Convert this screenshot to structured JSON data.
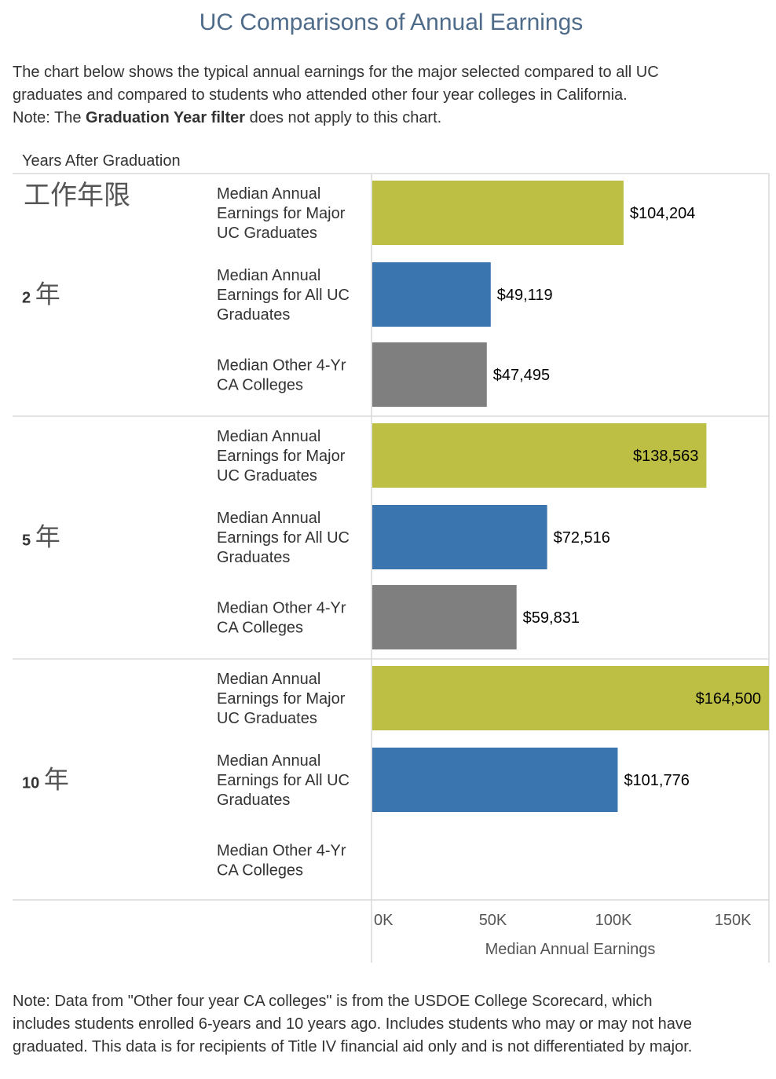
{
  "title": "UC Comparisons of Annual Earnings",
  "intro": {
    "line1": "The chart below shows the typical annual earnings for the major selected compared to all UC",
    "line2": "graduates and compared to students who attended other four year colleges in California.",
    "line3_prefix": "Note: The ",
    "line3_bold": "Graduation Year filter",
    "line3_suffix": " does not apply to this chart."
  },
  "footnote": {
    "line1": "Note: Data from \"Other four year CA colleges\" is from the USDOE College Scorecard, which",
    "line2": "includes students enrolled 6-years and 10 years ago. Includes students who may or may not have",
    "line3": "graduated. This data is for recipients of Title IV financial aid only and is not differentiated by major."
  },
  "chart_data": {
    "type": "bar",
    "orientation": "horizontal",
    "row_header": "Years After Graduation",
    "row_header_sub": "工作年限",
    "xlabel": "Median Annual Earnings",
    "xlim": [
      0,
      164500
    ],
    "xticks": [
      {
        "value": 0,
        "label": "0K"
      },
      {
        "value": 50000,
        "label": "50K"
      },
      {
        "value": 100000,
        "label": "100K"
      },
      {
        "value": 150000,
        "label": "150K"
      }
    ],
    "colors": {
      "major": "#bdbf44",
      "all_uc": "#3a75b0",
      "other": "#7f7f7f",
      "grid": "#d9d9d9"
    },
    "groups": [
      {
        "label": "2 年",
        "bars": [
          {
            "category": [
              "Median Annual",
              "Earnings for Major",
              "UC Graduates"
            ],
            "series": "major",
            "value": 104204,
            "value_label": "$104,204"
          },
          {
            "category": [
              "Median Annual",
              "Earnings for All UC",
              "Graduates"
            ],
            "series": "all_uc",
            "value": 49119,
            "value_label": "$49,119"
          },
          {
            "category": [
              "Median Other 4-Yr",
              "CA Colleges"
            ],
            "series": "other",
            "value": 47495,
            "value_label": "$47,495"
          }
        ]
      },
      {
        "label": "5 年",
        "bars": [
          {
            "category": [
              "Median Annual",
              "Earnings for Major",
              "UC Graduates"
            ],
            "series": "major",
            "value": 138563,
            "value_label": "$138,563"
          },
          {
            "category": [
              "Median Annual",
              "Earnings for All UC",
              "Graduates"
            ],
            "series": "all_uc",
            "value": 72516,
            "value_label": "$72,516"
          },
          {
            "category": [
              "Median Other 4-Yr",
              "CA Colleges"
            ],
            "series": "other",
            "value": 59831,
            "value_label": "$59,831"
          }
        ]
      },
      {
        "label": "10 年",
        "bars": [
          {
            "category": [
              "Median Annual",
              "Earnings for Major",
              "UC Graduates"
            ],
            "series": "major",
            "value": 164500,
            "value_label": "$164,500"
          },
          {
            "category": [
              "Median Annual",
              "Earnings for All UC",
              "Graduates"
            ],
            "series": "all_uc",
            "value": 101776,
            "value_label": "$101,776"
          },
          {
            "category": [
              "Median Other 4-Yr",
              "CA Colleges"
            ],
            "series": "other",
            "value": null,
            "value_label": ""
          }
        ]
      }
    ]
  }
}
